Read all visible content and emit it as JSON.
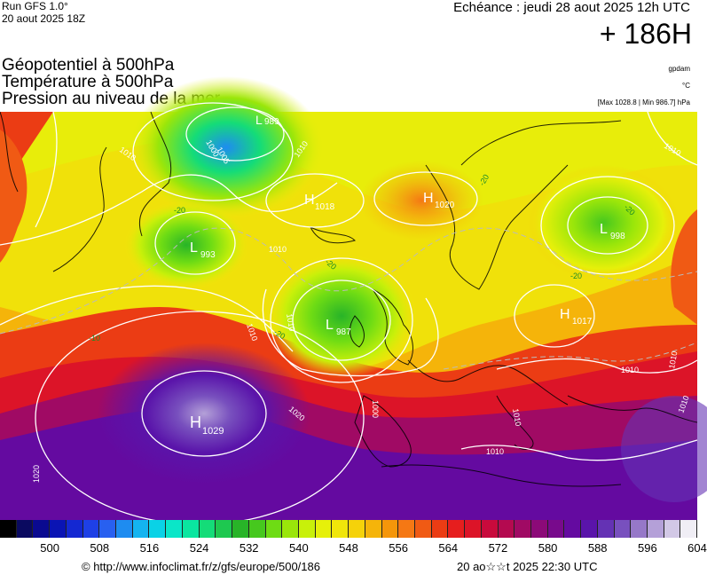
{
  "header": {
    "run_line1": "Run GFS 1.0°",
    "run_line2": "20 aout 2025 18Z",
    "echeance": "Echéance : jeudi 28 aout 2025 12h UTC",
    "lead_time": "+ 186H"
  },
  "titles": {
    "line1": "Géopotentiel à 500hPa",
    "line2": "Température à 500hPa",
    "line3": "Pression au niveau de la mer"
  },
  "units": {
    "geopotential": "gpdam",
    "temperature": "°C",
    "pressure_range": "[Max 1028.8 | Min 986.7] hPa"
  },
  "pressure_centers": [
    {
      "type": "L",
      "value": "989"
    },
    {
      "type": "H",
      "value": "1018"
    },
    {
      "type": "H",
      "value": "1020"
    },
    {
      "type": "L",
      "value": "998"
    },
    {
      "type": "L",
      "value": "993"
    },
    {
      "type": "L",
      "value": "987"
    },
    {
      "type": "H",
      "value": "1017"
    },
    {
      "type": "H",
      "value": "1029"
    }
  ],
  "isobar_labels": [
    "1010",
    "1000",
    "1005",
    "1010",
    "1010",
    "1010",
    "1010",
    "1000",
    "1010",
    "1010",
    "1020",
    "1010",
    "1010",
    "1020",
    "1010",
    "1010"
  ],
  "isotherm_labels": [
    "-20",
    "-20",
    "-20",
    "-20",
    "-20",
    "-20",
    "-10"
  ],
  "colorscale": {
    "colors": [
      "#000000",
      "#0a0a60",
      "#0a0a90",
      "#0a14b4",
      "#1428d2",
      "#1e40e6",
      "#2860f0",
      "#1e8cf0",
      "#14b4f0",
      "#0ad2e6",
      "#0ae6c8",
      "#0ae6a0",
      "#14dc78",
      "#1ec850",
      "#28b428",
      "#46c81e",
      "#6edc14",
      "#9ae60a",
      "#c8f00a",
      "#e6f00a",
      "#f0e60a",
      "#f5d20a",
      "#f5b40a",
      "#f5960a",
      "#f57814",
      "#f05a14",
      "#eb3c14",
      "#e61e1e",
      "#dc1428",
      "#c80a3c",
      "#b40a50",
      "#a00a64",
      "#8c0a78",
      "#780a8c",
      "#640aa0",
      "#5a14aa",
      "#6432b4",
      "#7850be",
      "#9678c8",
      "#b4a0d8",
      "#d2c8e6",
      "#f0eef5"
    ],
    "labels": [
      "500",
      "508",
      "516",
      "524",
      "532",
      "540",
      "548",
      "556",
      "564",
      "572",
      "580",
      "588",
      "596",
      "604"
    ]
  },
  "footer": {
    "url": "© http://www.infoclimat.fr/z/gfs/europe/500/186",
    "timestamp": "20 ao☆☆t 2025 22:30 UTC"
  }
}
